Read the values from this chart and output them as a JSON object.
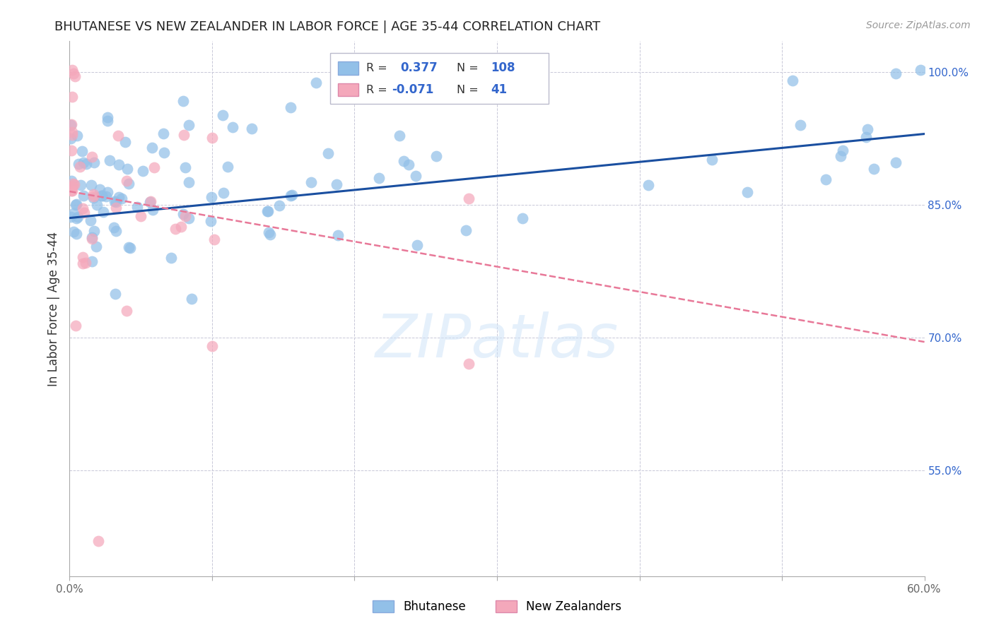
{
  "title": "BHUTANESE VS NEW ZEALANDER IN LABOR FORCE | AGE 35-44 CORRELATION CHART",
  "source": "Source: ZipAtlas.com",
  "ylabel": "In Labor Force | Age 35-44",
  "x_min": 0.0,
  "x_max": 0.6,
  "y_min": 0.43,
  "y_max": 1.035,
  "y_ticks": [
    0.55,
    0.7,
    0.85,
    1.0
  ],
  "y_tick_labels": [
    "55.0%",
    "70.0%",
    "85.0%",
    "100.0%"
  ],
  "x_ticks": [
    0.0,
    0.1,
    0.2,
    0.3,
    0.4,
    0.5,
    0.6
  ],
  "x_tick_labels": [
    "0.0%",
    "",
    "",
    "",
    "",
    "",
    "60.0%"
  ],
  "blue_color": "#92c0e8",
  "pink_color": "#f4a8bb",
  "blue_line_color": "#1a4fa0",
  "pink_line_color": "#e87898",
  "grid_color": "#c8c8d8",
  "background_color": "#ffffff",
  "watermark_color": "#d0e4f8",
  "legend_label_blue": "Bhutanese",
  "legend_label_pink": "New Zealanders",
  "blue_line_x0": 0.0,
  "blue_line_y0": 0.835,
  "blue_line_x1": 0.6,
  "blue_line_y1": 0.93,
  "pink_line_x0": 0.0,
  "pink_line_y0": 0.865,
  "pink_line_x1": 0.6,
  "pink_line_y1": 0.695
}
